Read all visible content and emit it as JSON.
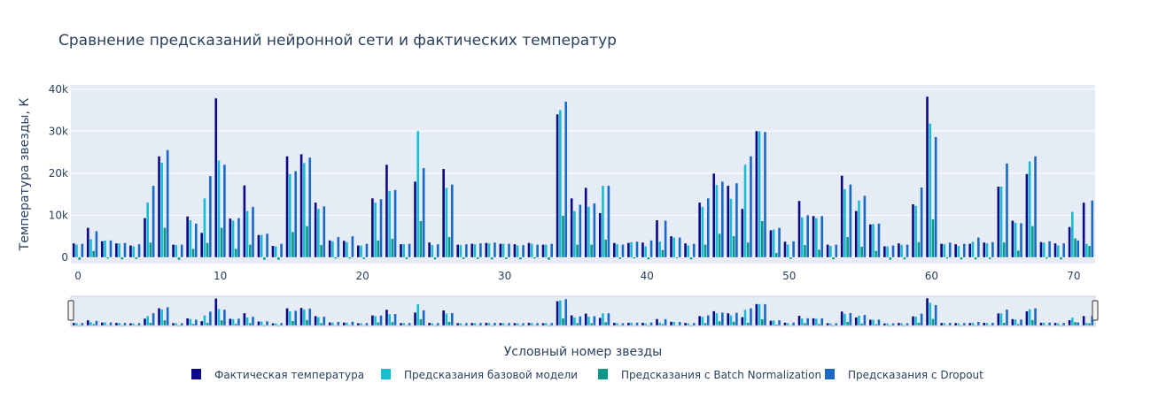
{
  "chart_data": {
    "type": "bar",
    "title": "Сравнение предсказаний нейронной сети и фактических температур",
    "xlabel": "Условный номер звезды",
    "ylabel": "Температура звезды, К",
    "ylim": [
      -1500,
      41000
    ],
    "xlim": [
      -0.5,
      71.5
    ],
    "yticks": [
      0,
      10000,
      20000,
      30000,
      40000
    ],
    "ytick_labels": [
      "0",
      "10k",
      "20k",
      "30k",
      "40k"
    ],
    "xticks": [
      0,
      10,
      20,
      30,
      40,
      50,
      60,
      70
    ],
    "xtick_labels": [
      "0",
      "10",
      "20",
      "30",
      "40",
      "50",
      "60",
      "70"
    ],
    "grid": true,
    "legend_position": "bottom",
    "rangeslider": true,
    "x": [
      0,
      1,
      2,
      3,
      4,
      5,
      6,
      7,
      8,
      9,
      10,
      11,
      12,
      13,
      14,
      15,
      16,
      17,
      18,
      19,
      20,
      21,
      22,
      23,
      24,
      25,
      26,
      27,
      28,
      29,
      30,
      31,
      32,
      33,
      34,
      35,
      36,
      37,
      38,
      39,
      40,
      41,
      42,
      43,
      44,
      45,
      46,
      47,
      48,
      49,
      50,
      51,
      52,
      53,
      54,
      55,
      56,
      57,
      58,
      59,
      60,
      61,
      62,
      63,
      64,
      65,
      66,
      67,
      68,
      69,
      70,
      71
    ],
    "series": [
      {
        "name": "Фактическая температура",
        "color": "#0d0887",
        "values": [
          3300,
          7000,
          3800,
          3300,
          2800,
          9300,
          24000,
          3000,
          9700,
          5800,
          37800,
          9200,
          17100,
          5300,
          2700,
          24000,
          24500,
          13000,
          4000,
          3900,
          2800,
          14000,
          22000,
          3100,
          18000,
          3500,
          21000,
          3000,
          3200,
          3400,
          3200,
          3100,
          3400,
          3000,
          34000,
          14000,
          16500,
          10500,
          3400,
          3400,
          3500,
          8800,
          5000,
          3300,
          13000,
          19900,
          17000,
          11500,
          30000,
          6400,
          3700,
          13400,
          9800,
          3000,
          19400,
          11000,
          7800,
          2600,
          3300,
          12600,
          38200,
          3200,
          3100,
          3200,
          3500,
          16800,
          8700,
          19800,
          3600,
          3300,
          7200,
          13000
        ]
      },
      {
        "name": "Предсказания базовой модели",
        "color": "#17becf",
        "values": [
          3000,
          4300,
          4000,
          3300,
          2600,
          13000,
          22500,
          2900,
          8800,
          14000,
          23000,
          8700,
          11000,
          5300,
          2600,
          19800,
          22400,
          11500,
          3800,
          3600,
          2800,
          13000,
          15800,
          3100,
          30000,
          2900,
          16500,
          2900,
          3100,
          3300,
          3200,
          2800,
          3200,
          3000,
          35000,
          11000,
          12000,
          17000,
          3100,
          3600,
          2600,
          3700,
          4700,
          2800,
          12000,
          17200,
          13900,
          22000,
          30000,
          6600,
          3000,
          9500,
          9300,
          2700,
          16200,
          13500,
          7900,
          2600,
          2900,
          12200,
          31800,
          3100,
          2700,
          3700,
          3300,
          16800,
          8200,
          22800,
          3500,
          2800,
          10800,
          3200
        ]
      },
      {
        "name": "Предсказания с Batch Normalization",
        "color": "#0f9688",
        "values": [
          -600,
          1500,
          -300,
          -500,
          -400,
          3500,
          7000,
          -600,
          2000,
          3400,
          7000,
          2000,
          3000,
          -600,
          -600,
          6000,
          7400,
          2900,
          -300,
          -300,
          -400,
          4000,
          4400,
          -400,
          8600,
          -500,
          4800,
          -400,
          -400,
          -500,
          -400,
          -500,
          -300,
          -600,
          9900,
          3000,
          3000,
          4200,
          -400,
          -300,
          -500,
          1700,
          -200,
          -500,
          3000,
          5600,
          5000,
          3500,
          8600,
          1000,
          -400,
          2900,
          1800,
          -500,
          4800,
          2500,
          1500,
          -600,
          -500,
          3600,
          9000,
          -300,
          -500,
          -500,
          -400,
          3500,
          1600,
          7400,
          -300,
          -500,
          4500,
          2700
        ]
      },
      {
        "name": "Предсказания с Dropout",
        "color": "#1a69c9",
        "values": [
          3200,
          6200,
          4000,
          3400,
          3100,
          17000,
          25500,
          3000,
          8000,
          19300,
          22000,
          9300,
          12000,
          5600,
          3200,
          20500,
          23700,
          12100,
          4800,
          5000,
          3200,
          13800,
          16000,
          3200,
          21200,
          3100,
          17300,
          3100,
          3300,
          3500,
          3200,
          2900,
          3000,
          3200,
          37000,
          12500,
          12800,
          17000,
          3000,
          3700,
          4000,
          8700,
          4700,
          3200,
          14000,
          18000,
          17600,
          24000,
          29800,
          7000,
          3800,
          10000,
          9800,
          3000,
          17300,
          14600,
          8000,
          2800,
          3000,
          16600,
          28600,
          3500,
          3200,
          4700,
          3600,
          22300,
          8100,
          24000,
          3800,
          3300,
          4000,
          13500
        ]
      }
    ]
  }
}
